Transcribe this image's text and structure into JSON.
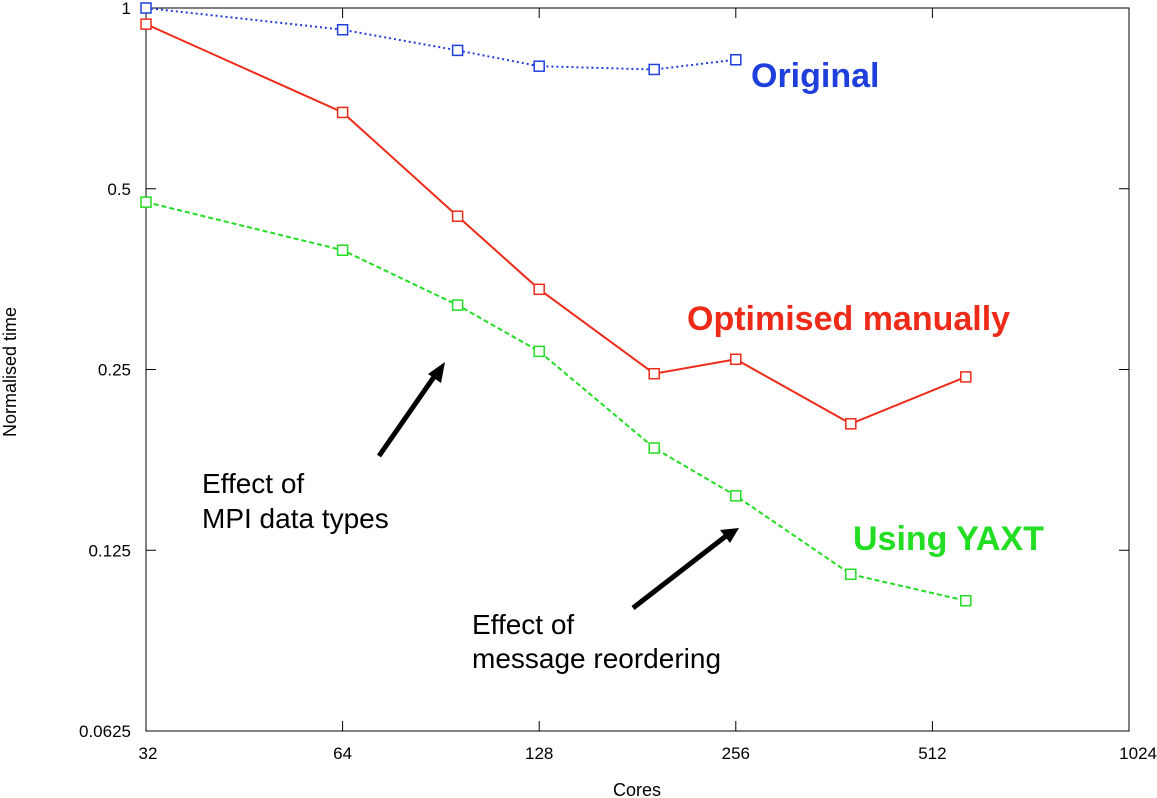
{
  "chart_data": {
    "type": "line",
    "title": "",
    "xlabel": "Cores",
    "ylabel": "Normalised time",
    "xscale": "log2",
    "yscale": "log2",
    "xlim": [
      32,
      1024
    ],
    "ylim": [
      0.0625,
      1
    ],
    "xticks": [
      32,
      64,
      128,
      256,
      512,
      1024
    ],
    "xtick_labels": [
      "32",
      "64",
      "128",
      "256",
      "512",
      "1024"
    ],
    "yticks": [
      0.0625,
      0.125,
      0.25,
      0.5,
      1
    ],
    "ytick_labels": [
      "0.0625",
      "0.125",
      "0.25",
      "0.5",
      "1"
    ],
    "grid": false,
    "legend": "inline labels",
    "series": [
      {
        "name": "Original",
        "color": "#1f3fdc",
        "line_style": "dotted",
        "x": [
          32,
          64,
          96,
          128,
          192,
          256
        ],
        "y": [
          1.0,
          0.92,
          0.85,
          0.8,
          0.79,
          0.82
        ]
      },
      {
        "name": "Optimised manually",
        "color": "#ee2b19",
        "line_style": "solid",
        "x": [
          32,
          64,
          96,
          128,
          192,
          256,
          384,
          576
        ],
        "y": [
          0.94,
          0.67,
          0.45,
          0.34,
          0.246,
          0.26,
          0.203,
          0.243
        ]
      },
      {
        "name": "Using YAXT",
        "color": "#22dd22",
        "line_style": "dashed",
        "x": [
          32,
          64,
          96,
          128,
          192,
          256,
          384,
          576
        ],
        "y": [
          0.475,
          0.395,
          0.32,
          0.268,
          0.185,
          0.154,
          0.114,
          0.103
        ]
      }
    ],
    "annotations": [
      {
        "lines": [
          "Effect  of",
          "MPI data types"
        ]
      },
      {
        "lines": [
          "Effect of",
          "message  reordering"
        ]
      }
    ]
  }
}
